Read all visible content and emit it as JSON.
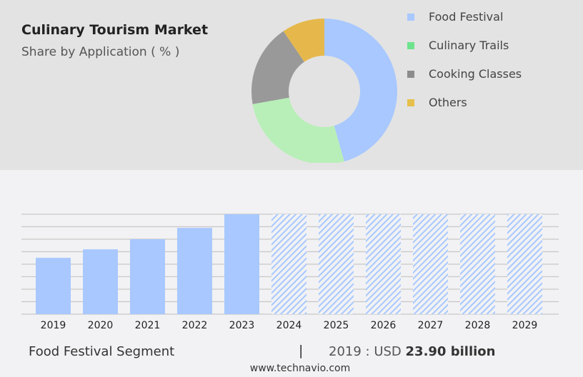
{
  "header": {
    "title": "Culinary Tourism Market",
    "subtitle": "Share by Application ( % )"
  },
  "chart_data": [
    {
      "type": "pie",
      "donut": true,
      "labels": [
        "Food Festival",
        "Culinary Trails",
        "Cooking Classes",
        "Others"
      ],
      "values": [
        45.6,
        26.6,
        18.3,
        9.5
      ],
      "colors": [
        "#a8c8ff",
        "#b8efb8",
        "#999999",
        "#e6b84c"
      ],
      "legend_colors": [
        "#a8c8ff",
        "#6ee38e",
        "#8c8c8c",
        "#e6c04c"
      ],
      "legend": "right"
    },
    {
      "type": "bar",
      "categories": [
        "2019",
        "2020",
        "2021",
        "2022",
        "2023",
        "2024",
        "2025",
        "2026",
        "2027",
        "2028",
        "2029"
      ],
      "values": [
        23.9,
        27.5,
        31.8,
        36.6,
        42.4,
        null,
        null,
        null,
        null,
        null,
        null
      ],
      "forecast": [
        "2024",
        "2025",
        "2026",
        "2027",
        "2028",
        "2029"
      ],
      "color": "#a8c8ff",
      "grid": true,
      "ylim": [
        0,
        42.4
      ]
    }
  ],
  "footer": {
    "segment": "Food Festival Segment",
    "separator": "|",
    "year_label": "2019 : USD",
    "value": "23.90 billion",
    "url": "www.technavio.com"
  }
}
